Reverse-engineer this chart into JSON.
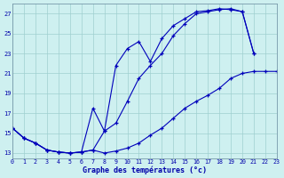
{
  "bg_color": "#cef0f0",
  "line_color": "#0000bb",
  "grid_color": "#a0d0d0",
  "axis_color": "#0000aa",
  "xlim": [
    0,
    23
  ],
  "ylim": [
    12.5,
    28.0
  ],
  "yticks": [
    13,
    15,
    17,
    19,
    21,
    23,
    25,
    27
  ],
  "xticks": [
    0,
    1,
    2,
    3,
    4,
    5,
    6,
    7,
    8,
    9,
    10,
    11,
    12,
    13,
    14,
    15,
    16,
    17,
    18,
    19,
    20,
    21,
    22,
    23
  ],
  "line1_x": [
    0,
    1,
    2,
    3,
    4,
    5,
    6,
    7,
    8,
    9,
    10,
    11,
    12,
    13,
    14,
    15,
    16,
    17,
    18,
    19,
    20,
    21
  ],
  "line1_y": [
    15.5,
    14.5,
    14.0,
    13.3,
    13.1,
    13.0,
    13.1,
    17.5,
    15.2,
    21.8,
    23.5,
    24.2,
    22.2,
    24.5,
    25.8,
    26.5,
    27.2,
    27.3,
    27.5,
    27.4,
    27.2,
    23.0
  ],
  "line2_x": [
    0,
    1,
    2,
    3,
    4,
    5,
    6,
    7,
    8,
    9,
    10,
    11,
    12,
    13,
    14,
    15,
    16,
    17,
    18,
    19,
    20,
    21
  ],
  "line2_y": [
    15.5,
    14.5,
    14.0,
    13.3,
    13.1,
    13.0,
    13.1,
    13.3,
    15.2,
    16.0,
    18.2,
    20.5,
    21.8,
    23.0,
    24.8,
    26.0,
    27.0,
    27.2,
    27.4,
    27.5,
    27.2,
    23.0
  ],
  "line3_x": [
    0,
    1,
    2,
    3,
    4,
    5,
    6,
    7,
    8,
    9,
    10,
    11,
    12,
    13,
    14,
    15,
    16,
    17,
    18,
    19,
    20,
    21,
    22,
    23
  ],
  "line3_y": [
    15.5,
    14.5,
    14.0,
    13.3,
    13.1,
    13.0,
    13.1,
    13.3,
    13.0,
    13.2,
    13.5,
    14.0,
    14.8,
    15.5,
    16.5,
    17.5,
    18.2,
    18.8,
    19.5,
    20.5,
    21.0,
    21.2,
    21.2,
    21.2
  ],
  "xlabel": "Graphe des températures (°c)"
}
